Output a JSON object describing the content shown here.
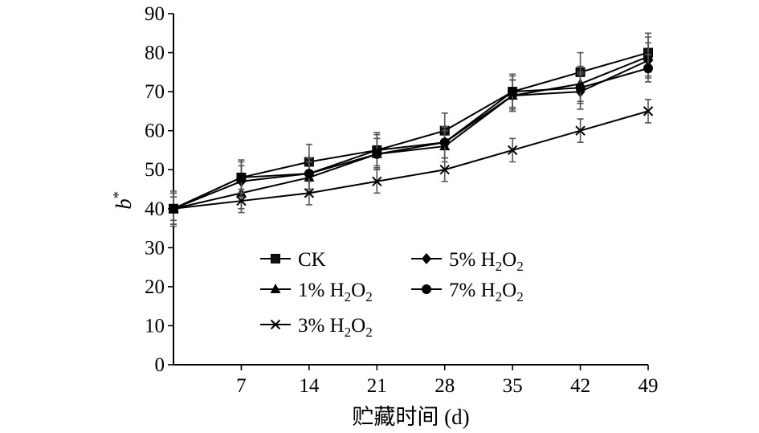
{
  "chart_data": {
    "type": "line",
    "xlabel": "贮藏时间 (d)",
    "ylabel": {
      "base": "b",
      "sup": "*"
    },
    "ylim": [
      0,
      90
    ],
    "yticks": [
      0,
      10,
      20,
      30,
      40,
      50,
      60,
      70,
      80,
      90
    ],
    "x": [
      0,
      7,
      14,
      21,
      28,
      35,
      42,
      49
    ],
    "xticks": [
      7,
      14,
      21,
      28,
      35,
      42,
      49
    ],
    "grid": false,
    "legend_position": "lower-center",
    "series": [
      {
        "name": "CK",
        "label": {
          "base": "CK",
          "sub": "",
          "tail": "",
          "sub2": ""
        },
        "marker": "square",
        "values": [
          40,
          48,
          52,
          55,
          60,
          70,
          75,
          80
        ],
        "errors": [
          4.5,
          4.5,
          4.5,
          4.5,
          4.5,
          4.5,
          5,
          5
        ]
      },
      {
        "name": "1% H2O2",
        "label": {
          "base": "1% H",
          "sub": "2",
          "tail": "O",
          "sub2": "2"
        },
        "marker": "triangle",
        "values": [
          40,
          44,
          48,
          54,
          56,
          69,
          72,
          79
        ],
        "errors": [
          4,
          4,
          4,
          4,
          4,
          4,
          4.5,
          5
        ]
      },
      {
        "name": "3% H2O2",
        "label": {
          "base": "3% H",
          "sub": "2",
          "tail": "O",
          "sub2": "2"
        },
        "marker": "x",
        "values": [
          40,
          42,
          44,
          47,
          50,
          55,
          60,
          65
        ],
        "errors": [
          3,
          3,
          3,
          3,
          3,
          3,
          3,
          3
        ]
      },
      {
        "name": "5% H2O2",
        "label": {
          "base": "5% H",
          "sub": "2",
          "tail": "O",
          "sub2": "2"
        },
        "marker": "diamond",
        "values": [
          40,
          47,
          49,
          55,
          57,
          69,
          70,
          78
        ],
        "errors": [
          4,
          4,
          4,
          4,
          4,
          4,
          4.5,
          4.5
        ]
      },
      {
        "name": "7% H2O2",
        "label": {
          "base": "7% H",
          "sub": "2",
          "tail": "O",
          "sub2": "2"
        },
        "marker": "circle",
        "values": [
          40,
          48,
          49,
          54,
          57,
          70,
          71,
          76
        ],
        "errors": [
          4,
          4,
          4,
          4,
          4,
          4,
          4,
          3.5
        ]
      }
    ]
  }
}
